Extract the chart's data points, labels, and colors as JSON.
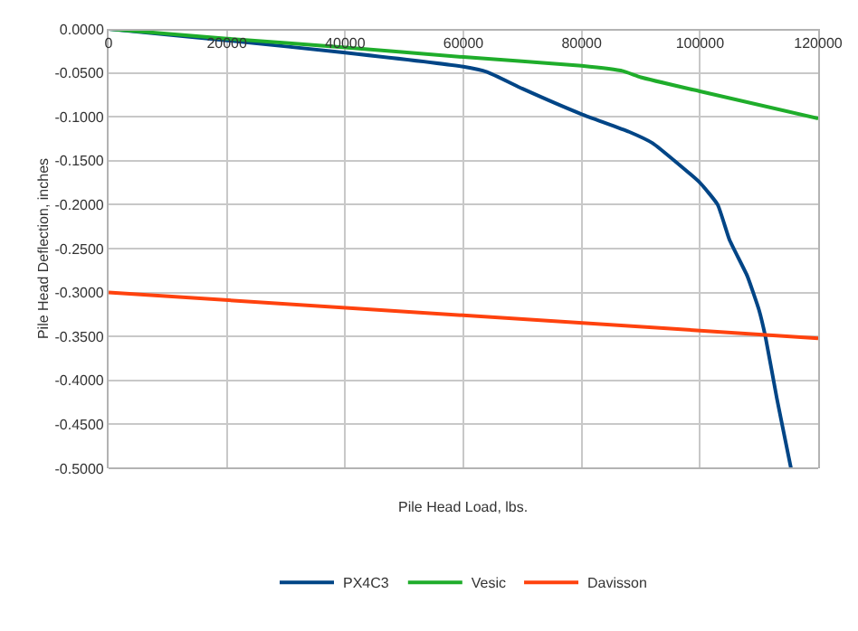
{
  "chart_data": {
    "type": "line",
    "xlabel": "Pile Head Load, lbs.",
    "ylabel": "Pile Head Deflection, inches",
    "xlim": [
      0,
      120000
    ],
    "xticks": [
      0,
      20000,
      40000,
      60000,
      80000,
      100000,
      120000
    ],
    "ylim": [
      -0.5,
      0
    ],
    "yticks": [
      {
        "value": 0,
        "label": "0.0000"
      },
      {
        "value": -0.05,
        "label": "-0.0500"
      },
      {
        "value": -0.1,
        "label": "-0.1000"
      },
      {
        "value": -0.15,
        "label": "-0.1500"
      },
      {
        "value": -0.2,
        "label": "-0.2000"
      },
      {
        "value": -0.25,
        "label": "-0.2500"
      },
      {
        "value": -0.3,
        "label": "-0.3000"
      },
      {
        "value": -0.35,
        "label": "-0.3500"
      },
      {
        "value": -0.4,
        "label": "-0.4000"
      },
      {
        "value": -0.45,
        "label": "-0.4500"
      },
      {
        "value": -0.5,
        "label": "-0.5000"
      }
    ],
    "grid": true,
    "legend": "bottom",
    "marker": "none",
    "line_style": "solid",
    "series": [
      {
        "name": "PX4C3",
        "color": "#004586",
        "x": [
          0,
          20000,
          40000,
          60000,
          64000,
          70000,
          80000,
          88000,
          92000,
          100000,
          103000,
          105000,
          108000,
          110000,
          111100,
          113000,
          114500,
          115400
        ],
        "values": [
          0,
          -0.013,
          -0.027,
          -0.043,
          -0.049,
          -0.068,
          -0.097,
          -0.117,
          -0.13,
          -0.175,
          -0.2,
          -0.24,
          -0.281,
          -0.32,
          -0.351,
          -0.42,
          -0.47,
          -0.5
        ]
      },
      {
        "name": "Vesic",
        "color": "#1fad2b",
        "x": [
          0,
          20000,
          40000,
          60000,
          80000,
          87000,
          90000,
          100000,
          120000
        ],
        "values": [
          0,
          -0.011,
          -0.021,
          -0.032,
          -0.042,
          -0.048,
          -0.055,
          -0.071,
          -0.102
        ]
      },
      {
        "name": "Davisson",
        "color": "#ff420e",
        "x": [
          0,
          120000
        ],
        "values": [
          -0.3,
          -0.352
        ]
      }
    ]
  }
}
